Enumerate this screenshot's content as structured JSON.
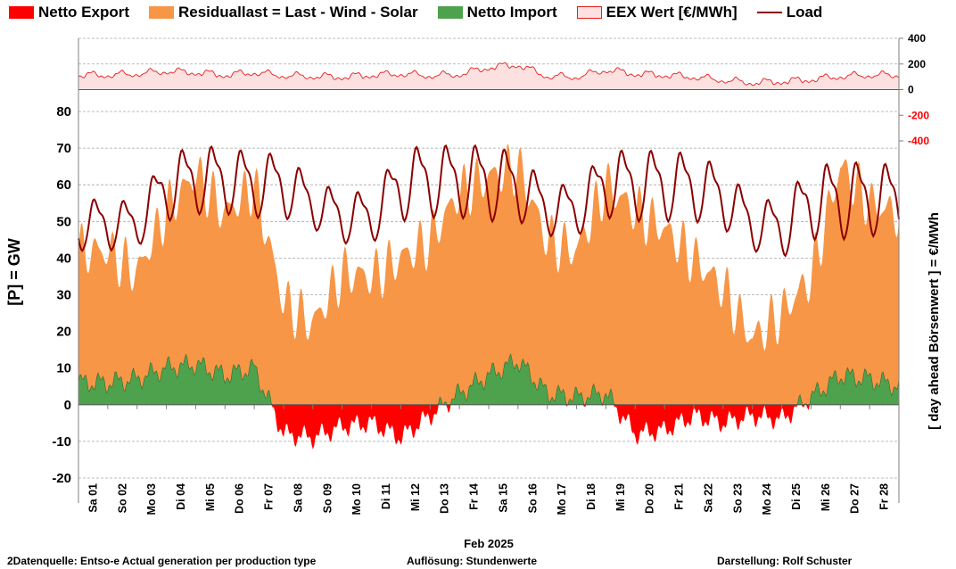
{
  "legend": {
    "export": "Netto Export",
    "residual": "Residuallast  =  Last - Wind - Solar",
    "import": "Netto Import",
    "eex": "EEX Wert [€/MWh]",
    "load": "Load"
  },
  "colors": {
    "export": "#ff0000",
    "residual": "#f79646",
    "import": "#4ea24e",
    "eex_fill": "#fde0e0",
    "eex_line": "#e81c1c",
    "load": "#8b0000",
    "right_negative_ticks": "#ff0000"
  },
  "footer": {
    "source": "2Datenquelle: Entso-e  Actual generation per production type",
    "resolution": "Auflösung: Stundenwerte",
    "author": "Darstellung:  Rolf Schuster"
  },
  "chart_data": {
    "type": "area",
    "title": "",
    "xlabel": "Feb 2025",
    "ylabel": "[P]  = GW",
    "y2label": "[ day ahead Börsenwert ]  = €/MWh",
    "ylim": [
      -20,
      80
    ],
    "yticks": [
      -20,
      -10,
      0,
      10,
      20,
      30,
      40,
      50,
      60,
      70,
      80
    ],
    "y2lim": [
      -400,
      400
    ],
    "y2ticks": [
      -400,
      -200,
      0,
      200,
      400
    ],
    "grid": true,
    "legend_position": "top",
    "x_tick_labels": [
      "Sa 01",
      "So 02",
      "Mo 03",
      "Di 04",
      "Mi 05",
      "Do 06",
      "Fr 07",
      "Sa 08",
      "So 09",
      "Mo 10",
      "Di 11",
      "Mi 12",
      "Do 13",
      "Fr 14",
      "Sa 15",
      "So 16",
      "Mo 17",
      "Di 18",
      "Mi 19",
      "Do 20",
      "Fr 21",
      "Sa 22",
      "So 23",
      "Mo 24",
      "Di 25",
      "Mi 26",
      "Do 27",
      "Fr 28"
    ],
    "day_x": [
      0.5,
      1.5,
      2.5,
      3.5,
      4.5,
      5.5,
      6.5,
      7.5,
      8.5,
      9.5,
      10.5,
      11.5,
      12.5,
      13.5,
      14.5,
      15.5,
      16.5,
      17.5,
      18.5,
      19.5,
      20.5,
      21.5,
      22.5,
      23.5,
      24.5,
      25.5,
      26.5,
      27.5,
      27.98
    ],
    "series": [
      {
        "name": "Load",
        "load_day_max": [
          58,
          57,
          71,
          73,
          73,
          71,
          71,
          63,
          60,
          60,
          72,
          74,
          73,
          74,
          71,
          62,
          62,
          72,
          72,
          72,
          71,
          67,
          58,
          58,
          68,
          69,
          69,
          68,
          68
        ],
        "load_day_min": [
          42,
          43,
          50,
          52,
          52,
          51,
          51,
          48,
          44,
          44,
          50,
          51,
          51,
          50,
          50,
          46,
          46,
          51,
          50,
          50,
          50,
          48,
          42,
          40,
          45,
          45,
          46,
          46,
          46
        ]
      },
      {
        "name": "Residuallast  =  Last - Wind - Solar",
        "residual_day": [
          42,
          36,
          53,
          63,
          52,
          60,
          28,
          22,
          36,
          35,
          40,
          45,
          58,
          62,
          65,
          45,
          42,
          60,
          53,
          48,
          40,
          32,
          18,
          25,
          35,
          65,
          55,
          52,
          48
        ]
      },
      {
        "name": "Netto Import / Netto Export",
        "net_day": [
          6,
          7,
          10,
          11,
          8,
          10,
          -8,
          -9,
          -6,
          -5,
          -9,
          -3,
          3,
          8,
          12,
          3,
          2,
          3,
          -8,
          -7,
          -3,
          -5,
          -3,
          -4,
          2,
          8,
          7,
          5,
          5
        ]
      },
      {
        "name": "EEX Wert [€/MWh]",
        "eex_day": [
          120,
          130,
          150,
          140,
          120,
          140,
          115,
          110,
          105,
          120,
          130,
          115,
          125,
          180,
          200,
          110,
          105,
          160,
          130,
          120,
          105,
          80,
          60,
          70,
          85,
          110,
          120,
          120,
          110
        ]
      }
    ]
  }
}
